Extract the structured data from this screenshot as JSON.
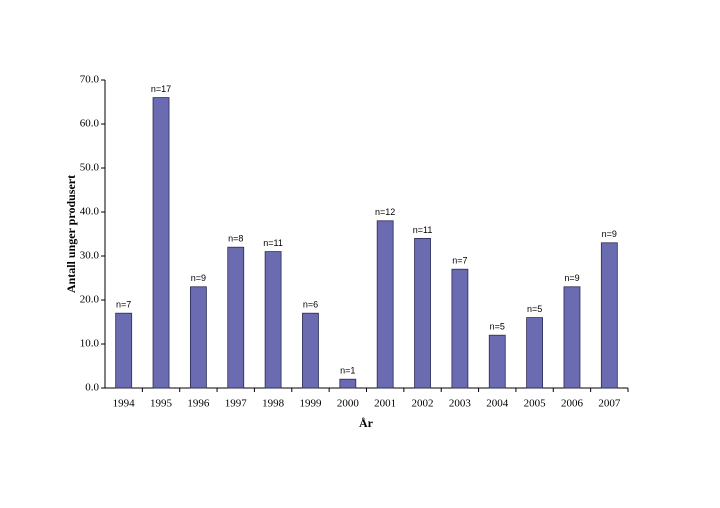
{
  "chart_data": {
    "type": "bar",
    "categories": [
      "1994",
      "1995",
      "1996",
      "1997",
      "1998",
      "1999",
      "2000",
      "2001",
      "2002",
      "2003",
      "2004",
      "2005",
      "2006",
      "2007"
    ],
    "values": [
      17,
      66,
      23,
      32,
      31,
      17,
      2,
      38,
      34,
      27,
      12,
      16,
      23,
      33
    ],
    "annotations": [
      "n=7",
      "n=17",
      "n=9",
      "n=8",
      "n=11",
      "n=6",
      "n=1",
      "n=12",
      "n=11",
      "n=7",
      "n=5",
      "n=5",
      "n=9",
      "n=9"
    ],
    "color": "#6b6bb2",
    "xlabel": "År",
    "ylabel": "Antall unger produsert",
    "ylim": [
      0,
      70
    ],
    "yticks": [
      {
        "value": 0,
        "label": "0.0"
      },
      {
        "value": 10,
        "label": "10.0"
      },
      {
        "value": 20,
        "label": "20.0"
      },
      {
        "value": 30,
        "label": "30.0"
      },
      {
        "value": 40,
        "label": "40.0"
      },
      {
        "value": 50,
        "label": "50.0"
      },
      {
        "value": 60,
        "label": "60.0"
      },
      {
        "value": 70,
        "label": "70.0"
      }
    ],
    "grid": false
  }
}
